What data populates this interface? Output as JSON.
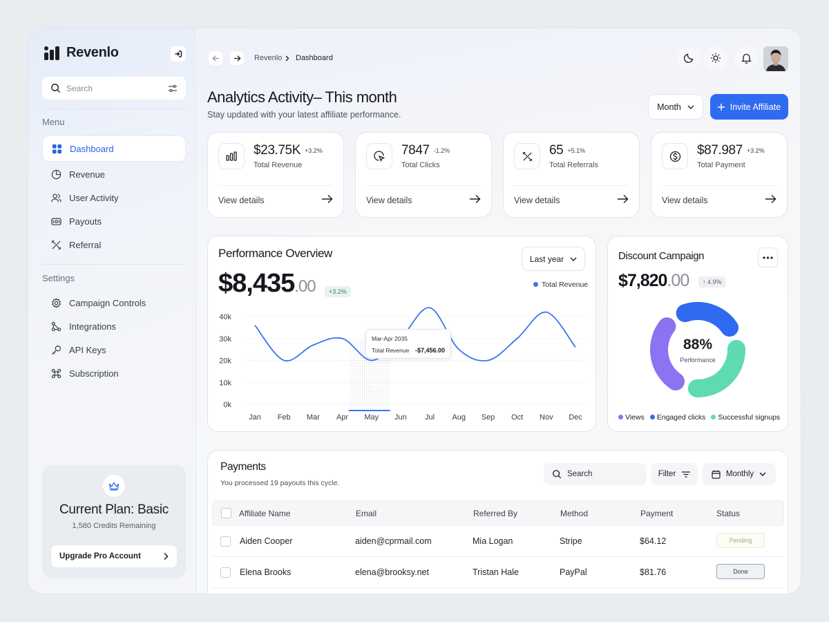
{
  "app": {
    "name": "Revenlo"
  },
  "sidebar": {
    "search_placeholder": "Search",
    "menu_label": "Menu",
    "menu_items": [
      {
        "label": "Dashboard",
        "icon": "grid-icon",
        "active": true
      },
      {
        "label": "Revenue",
        "icon": "pie-chart-icon"
      },
      {
        "label": "User Activity",
        "icon": "users-icon"
      },
      {
        "label": "Payouts",
        "icon": "wallet-icon"
      },
      {
        "label": "Referral",
        "icon": "referral-icon"
      }
    ],
    "settings_label": "Settings",
    "settings_items": [
      {
        "label": "Campaign Controls",
        "icon": "gear-icon"
      },
      {
        "label": "Integrations",
        "icon": "integration-icon"
      },
      {
        "label": "API Keys",
        "icon": "key-icon"
      },
      {
        "label": "Subscription",
        "icon": "command-icon"
      }
    ],
    "plan": {
      "title": "Current Plan: Basic",
      "credits": "1,580 Credits Remaining",
      "upgrade_label": "Upgrade Pro Account",
      "icon": "crown-icon"
    }
  },
  "topbar": {
    "breadcrumb": [
      "Revenlo",
      "Dashboard"
    ],
    "icons": [
      "arrow-left-icon",
      "arrow-right-icon",
      "moon-icon",
      "sun-icon",
      "bell-icon"
    ]
  },
  "header": {
    "title": "Analytics Activity– This month",
    "subtitle": "Stay updated with your latest affiliate performance.",
    "period_label": "Month",
    "invite_label": "Invite Affiliate"
  },
  "stats": [
    {
      "value": "$23.75K",
      "change": "+3.2%",
      "label": "Total Revenue",
      "link": "View details",
      "icon": "bar-chart-icon"
    },
    {
      "value": "7847",
      "change": "-1.2%",
      "label": "Total Clicks",
      "link": "View details",
      "icon": "click-icon"
    },
    {
      "value": "65",
      "change": "+5.1%",
      "label": "Total Referrals",
      "link": "View details",
      "icon": "referral-icon"
    },
    {
      "value": "$87.987",
      "change": "+3.2%",
      "label": "Total Payment",
      "link": "View details",
      "icon": "dollar-icon"
    }
  ],
  "performance": {
    "title": "Performance Overview",
    "value_main": "$8,435",
    "value_cents": ".00",
    "change": "+3.2%",
    "period_label": "Last year",
    "tooltip": {
      "period": "Mar-Apr 2035",
      "label": "Total Revenue",
      "value": "-$7,456.00"
    }
  },
  "chart_data": {
    "type": "line",
    "title": "Performance Overview",
    "categories": [
      "Jan",
      "Feb",
      "Mar",
      "Apr",
      "May",
      "Jun",
      "Jul",
      "Aug",
      "Sep",
      "Oct",
      "Nov",
      "Dec"
    ],
    "y_ticks": [
      "40k",
      "30k",
      "20k",
      "10k",
      "0k"
    ],
    "ylim": [
      0,
      40000
    ],
    "series": [
      {
        "name": "Total Revenue",
        "color": "#3b74f0",
        "values": [
          36000,
          20000,
          27000,
          30000,
          20000,
          30000,
          44000,
          25000,
          20000,
          30000,
          42000,
          26000
        ]
      }
    ],
    "highlight_category": "May",
    "grid": true,
    "legend": "top-right"
  },
  "discount": {
    "title": "Discount Campaign",
    "value_main": "$7,820",
    "value_cents": ".00",
    "change": "4.9%",
    "percent": "88%",
    "percent_label": "Performance",
    "segments": [
      {
        "label": "Views",
        "color": "#8b73f2",
        "share": 0.35
      },
      {
        "label": "Engaged clicks",
        "color": "#2f6bf0",
        "share": 0.3
      },
      {
        "label": "Successful signups",
        "color": "#5edbb3",
        "share": 0.35
      }
    ]
  },
  "payments": {
    "title": "Payments",
    "subtitle": "You processed 19 payouts this cycle.",
    "search_placeholder": "Search",
    "filter_label": "Filter",
    "period_label": "Monthly",
    "columns": [
      "Affiliate Name",
      "Email",
      "Referred By",
      "Method",
      "Payment",
      "Status"
    ],
    "rows": [
      {
        "name": "Aiden Cooper",
        "email": "aiden@cprmail.com",
        "referred_by": "Mia Logan",
        "method": "Stripe",
        "payment": "$64.12",
        "status": "Pending"
      },
      {
        "name": "Elena Brooks",
        "email": "elena@brooksy.net",
        "referred_by": "Tristan Hale",
        "method": "PayPal",
        "payment": "$81.76",
        "status": "Done"
      }
    ]
  }
}
